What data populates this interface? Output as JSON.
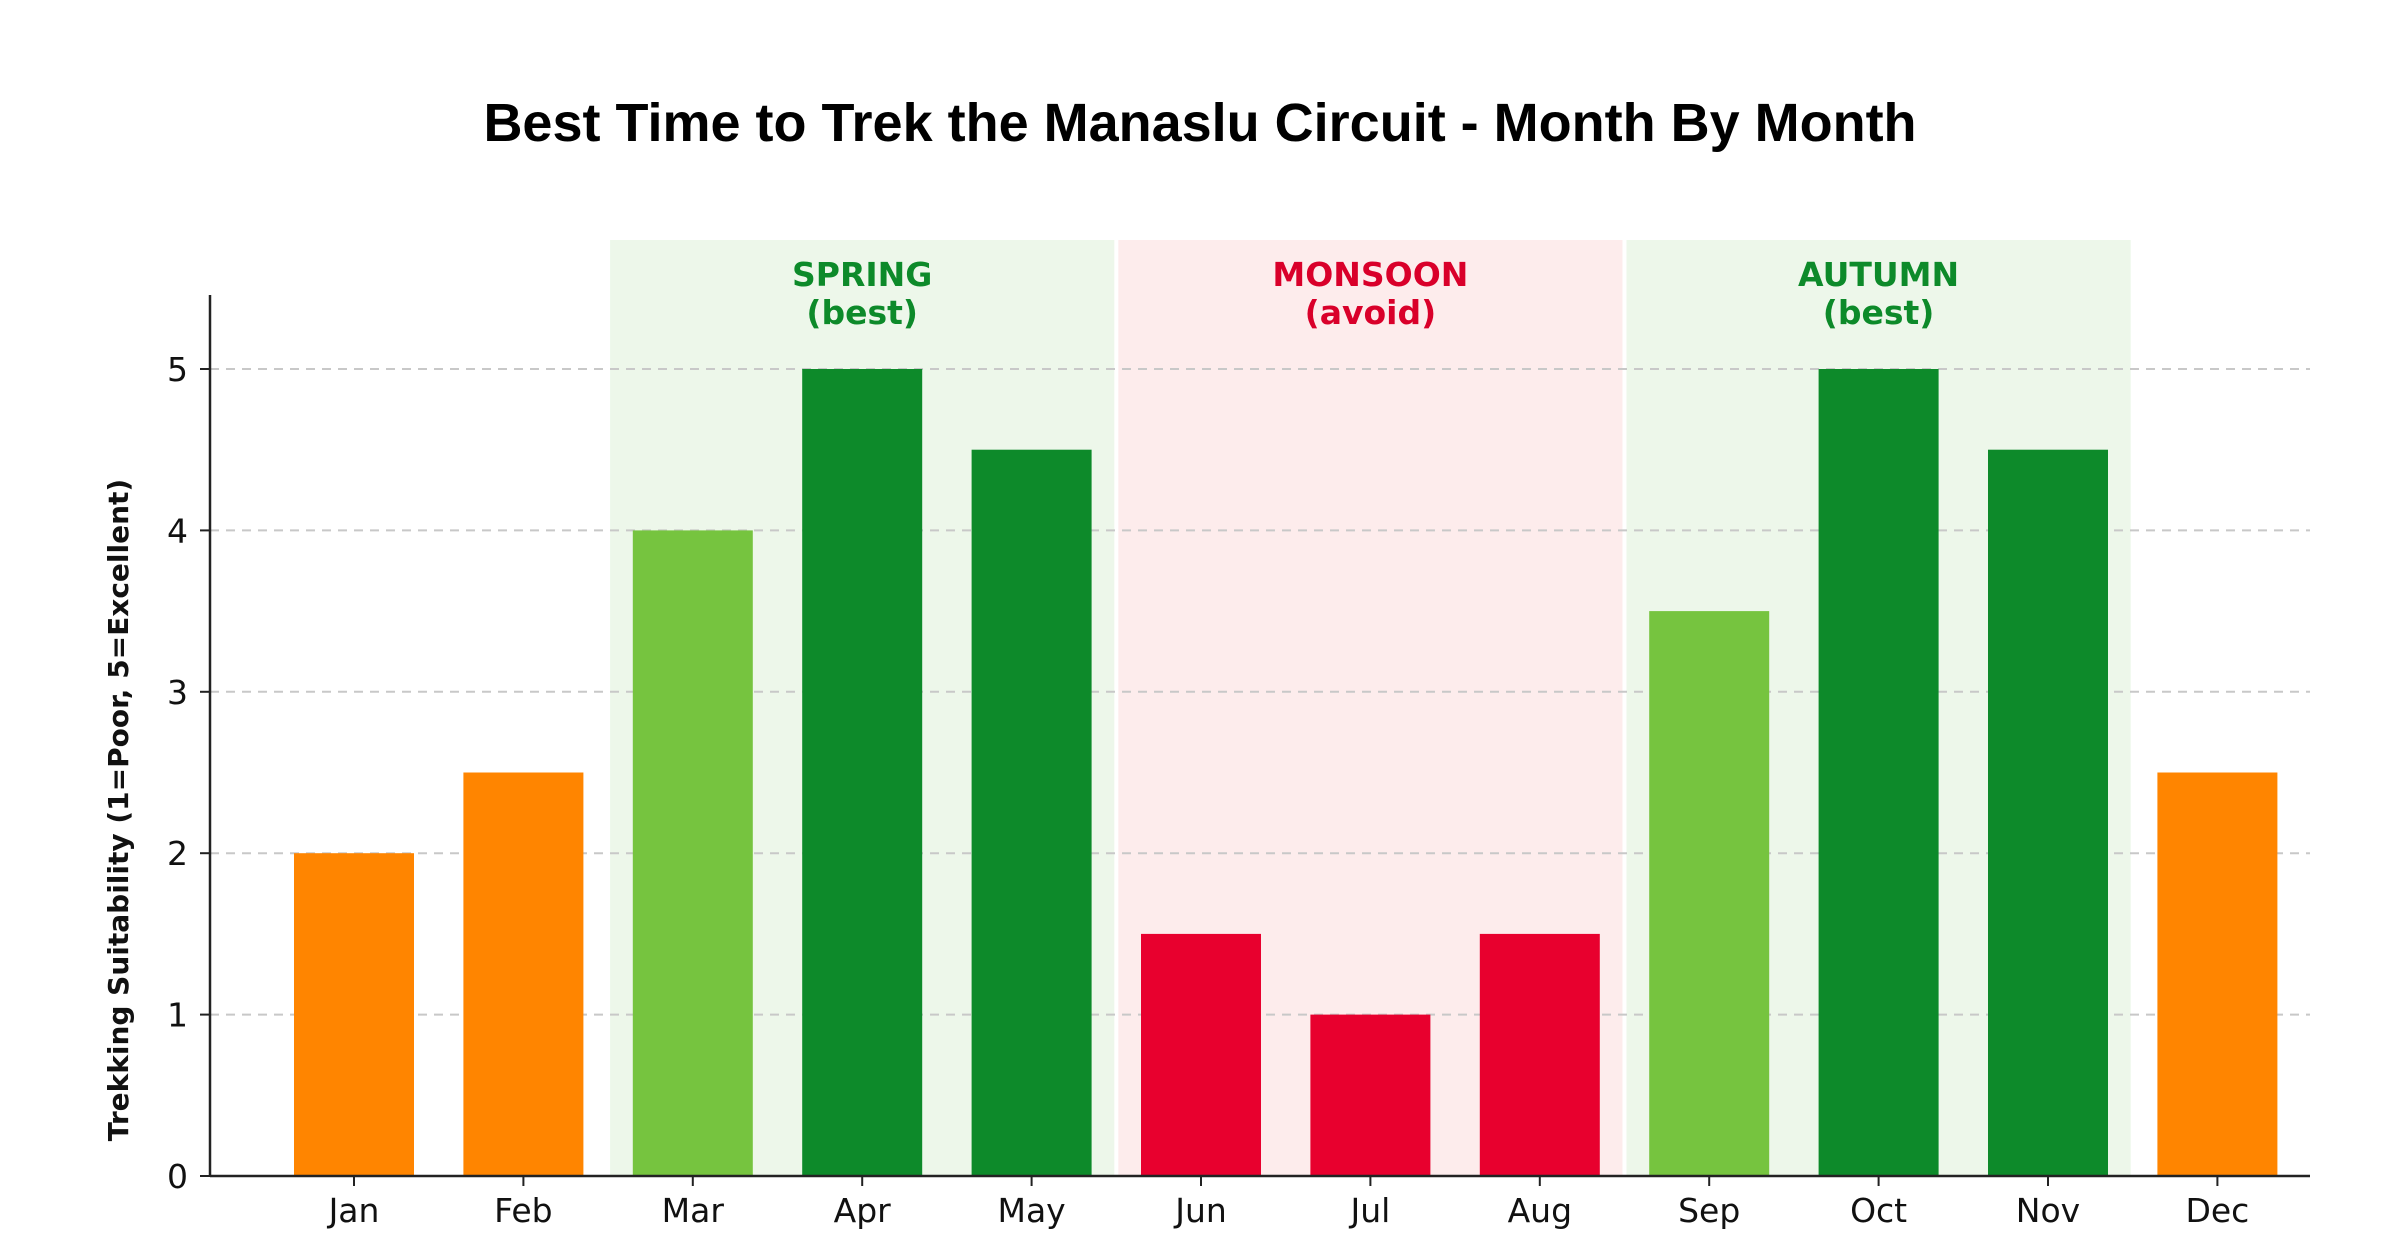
{
  "chart_data": {
    "type": "bar",
    "title": "Best Time to Trek the Manaslu Circuit - Month By Month",
    "xlabel": "",
    "ylabel": "Trekking Suitability (1=Poor, 5=Excellent)",
    "categories": [
      "Jan",
      "Feb",
      "Mar",
      "Apr",
      "May",
      "Jun",
      "Jul",
      "Aug",
      "Sep",
      "Oct",
      "Nov",
      "Dec"
    ],
    "values": [
      2,
      2.5,
      4,
      5,
      4.5,
      1.5,
      1,
      1.5,
      3.5,
      5,
      4.5,
      2.5
    ],
    "bar_colors": [
      "#ff8500",
      "#ff8500",
      "#76c43f",
      "#0d8a2a",
      "#0d8a2a",
      "#e8002e",
      "#e8002e",
      "#e8002e",
      "#76c43f",
      "#0d8a2a",
      "#0d8a2a",
      "#ff8500"
    ],
    "ylim": [
      0,
      5.5
    ],
    "yticks": [
      0,
      1,
      2,
      3,
      4,
      5
    ],
    "grid": "horizontal dashed",
    "seasons": [
      {
        "name": "SPRING",
        "note": "(best)",
        "start": "Mar",
        "end": "May",
        "color": "#0d8a2a",
        "band_color": "#edf7ea"
      },
      {
        "name": "MONSOON",
        "note": "(avoid)",
        "start": "Jun",
        "end": "Aug",
        "color": "#d9002a",
        "band_color": "#fdecec"
      },
      {
        "name": "AUTUMN",
        "note": "(best)",
        "start": "Sep",
        "end": "Nov",
        "color": "#0d8a2a",
        "band_color": "#edf7ea"
      }
    ]
  }
}
